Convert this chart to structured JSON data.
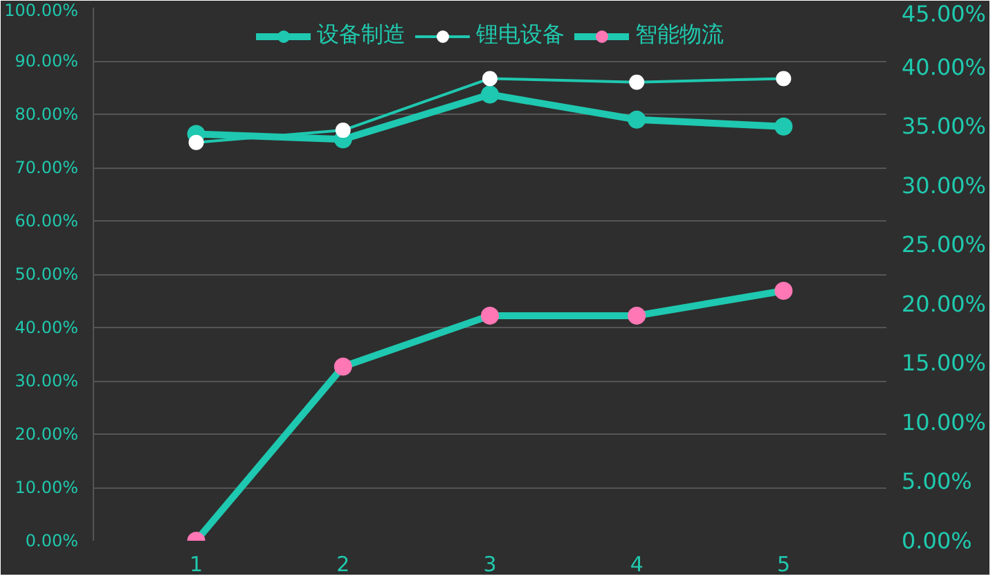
{
  "chart_data": {
    "type": "line",
    "categories": [
      "1",
      "2",
      "3",
      "4",
      "5"
    ],
    "series": [
      {
        "name": "设备制造",
        "color": "#1fc8b0",
        "colors": [
          "#1fc8b0",
          "#1fc8b0",
          "#1fc8b0",
          "#1fc8b0",
          "#1fc8b0"
        ],
        "values": [
          76.3,
          75.3,
          83.7,
          79.0,
          77.7
        ]
      },
      {
        "name": "锂电设备",
        "color": "#1fc8b0",
        "colors": [
          "#ffffff",
          "#ffffff",
          "#ffffff",
          "#ffffff",
          "#ffffff"
        ],
        "values": [
          74.7,
          77.0,
          86.7,
          86.0,
          86.7
        ]
      },
      {
        "name": "智能物流",
        "color": "#1fc8b0",
        "colors": [
          "#ff77b4",
          "#ff77b4",
          "#ff77b4",
          "#ff77b4",
          "#ff77b4"
        ],
        "values": [
          0.0,
          14.7,
          19.0,
          19.0,
          21.1
        ],
        "axis": "y2"
      }
    ],
    "ylim": [
      0,
      100
    ],
    "yticks": [
      {
        "value": 0,
        "label": "0.00%"
      },
      {
        "value": 10,
        "label": "10.00%"
      },
      {
        "value": 20,
        "label": "20.00%"
      },
      {
        "value": 30,
        "label": "30.00%"
      },
      {
        "value": 40,
        "label": "40.00%"
      },
      {
        "value": 50,
        "label": "50.00%"
      },
      {
        "value": 60,
        "label": "60.00%"
      },
      {
        "value": 70,
        "label": "70.00%"
      },
      {
        "value": 80,
        "label": "80.00%"
      },
      {
        "value": 90,
        "label": "90.00%"
      },
      {
        "value": 100,
        "label": "100.00%"
      }
    ],
    "y2lim": [
      0,
      45
    ],
    "y2ticks": [
      {
        "value": 0,
        "label": "0.00%"
      },
      {
        "value": 5,
        "label": "5.00%"
      },
      {
        "value": 10,
        "label": "10.00%"
      },
      {
        "value": 15,
        "label": "15.00%"
      },
      {
        "value": 20,
        "label": "20.00%"
      },
      {
        "value": 25,
        "label": "25.00%"
      },
      {
        "value": 30,
        "label": "30.00%"
      },
      {
        "value": 35,
        "label": "35.00%"
      },
      {
        "value": 40,
        "label": "40.00%"
      },
      {
        "value": 45,
        "label": "45.00%"
      }
    ],
    "grid": "y",
    "legend": "top",
    "marker": "circle",
    "line_style": "solid"
  }
}
